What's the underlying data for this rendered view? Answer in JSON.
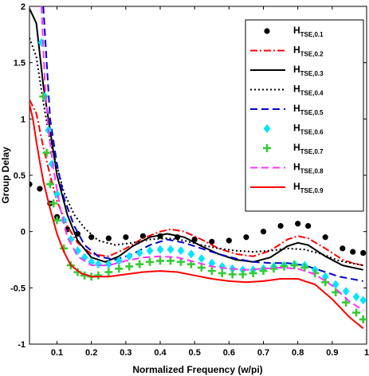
{
  "chart_data": {
    "type": "line",
    "xlabel": "Normalized Frequency (w/pi)",
    "ylabel": "Group Delay",
    "xlim": [
      0.02,
      1.0
    ],
    "ylim": [
      -1,
      2
    ],
    "x_ticks": [
      0.1,
      0.2,
      0.3,
      0.4,
      0.5,
      0.6,
      0.7,
      0.8,
      0.9,
      1
    ],
    "x_tick_labels": [
      "0.1",
      "0.2",
      "0.3",
      "0.4",
      "0.5",
      "0.6",
      "0.7",
      "0.8",
      "0.9",
      "1"
    ],
    "y_ticks": [
      -1,
      -0.5,
      0,
      0.5,
      1,
      1.5,
      2
    ],
    "y_tick_labels": [
      "-1",
      "-0.5",
      "0",
      "0.5",
      "1",
      "1.5",
      "2"
    ],
    "grid": false,
    "legend_position": "top-right",
    "series": [
      {
        "name": "H",
        "sub": "TSE,0.1",
        "color": "#000000",
        "style": "dots",
        "points": [
          [
            0.02,
            0.42
          ],
          [
            0.05,
            0.38
          ],
          [
            0.08,
            0.25
          ],
          [
            0.1,
            0.13
          ],
          [
            0.13,
            0.02
          ],
          [
            0.16,
            -0.02
          ],
          [
            0.2,
            -0.05
          ],
          [
            0.25,
            -0.06
          ],
          [
            0.3,
            -0.05
          ],
          [
            0.35,
            -0.04
          ],
          [
            0.4,
            -0.04
          ],
          [
            0.45,
            -0.05
          ],
          [
            0.5,
            -0.07
          ],
          [
            0.55,
            -0.09
          ],
          [
            0.6,
            -0.08
          ],
          [
            0.65,
            -0.05
          ],
          [
            0.7,
            0.0
          ],
          [
            0.75,
            0.05
          ],
          [
            0.8,
            0.07
          ],
          [
            0.83,
            0.05
          ],
          [
            0.88,
            -0.05
          ],
          [
            0.93,
            -0.15
          ],
          [
            0.96,
            -0.18
          ],
          [
            0.99,
            -0.19
          ]
        ]
      },
      {
        "name": "H",
        "sub": "TSE,0.2",
        "color": "#ff0000",
        "style": "dashdot",
        "points": [
          [
            0.02,
            1.17
          ],
          [
            0.04,
            1.05
          ],
          [
            0.06,
            0.75
          ],
          [
            0.08,
            0.5
          ],
          [
            0.1,
            0.27
          ],
          [
            0.13,
            0.05
          ],
          [
            0.16,
            -0.1
          ],
          [
            0.2,
            -0.2
          ],
          [
            0.25,
            -0.22
          ],
          [
            0.3,
            -0.15
          ],
          [
            0.35,
            -0.06
          ],
          [
            0.4,
            0.0
          ],
          [
            0.43,
            0.02
          ],
          [
            0.47,
            0.0
          ],
          [
            0.52,
            -0.07
          ],
          [
            0.57,
            -0.15
          ],
          [
            0.62,
            -0.2
          ],
          [
            0.67,
            -0.22
          ],
          [
            0.72,
            -0.17
          ],
          [
            0.77,
            -0.07
          ],
          [
            0.8,
            -0.04
          ],
          [
            0.83,
            -0.06
          ],
          [
            0.88,
            -0.15
          ],
          [
            0.93,
            -0.25
          ],
          [
            0.96,
            -0.28
          ],
          [
            0.99,
            -0.3
          ]
        ]
      },
      {
        "name": "H",
        "sub": "TSE,0.3",
        "color": "#000000",
        "style": "solid",
        "points": [
          [
            0.02,
            1.98
          ],
          [
            0.04,
            1.85
          ],
          [
            0.06,
            1.3
          ],
          [
            0.08,
            0.9
          ],
          [
            0.1,
            0.5
          ],
          [
            0.13,
            0.15
          ],
          [
            0.16,
            -0.08
          ],
          [
            0.2,
            -0.23
          ],
          [
            0.24,
            -0.27
          ],
          [
            0.28,
            -0.22
          ],
          [
            0.32,
            -0.13
          ],
          [
            0.37,
            -0.05
          ],
          [
            0.42,
            -0.02
          ],
          [
            0.47,
            -0.05
          ],
          [
            0.52,
            -0.13
          ],
          [
            0.57,
            -0.2
          ],
          [
            0.62,
            -0.25
          ],
          [
            0.67,
            -0.27
          ],
          [
            0.72,
            -0.23
          ],
          [
            0.77,
            -0.13
          ],
          [
            0.8,
            -0.1
          ],
          [
            0.83,
            -0.12
          ],
          [
            0.88,
            -0.22
          ],
          [
            0.93,
            -0.3
          ],
          [
            0.99,
            -0.34
          ]
        ]
      },
      {
        "name": "H",
        "sub": "TSE,0.4",
        "color": "#000000",
        "style": "dotted",
        "points": [
          [
            0.02,
            1.72
          ],
          [
            0.04,
            1.55
          ],
          [
            0.06,
            1.15
          ],
          [
            0.08,
            0.8
          ],
          [
            0.1,
            0.58
          ],
          [
            0.12,
            0.35
          ],
          [
            0.15,
            0.15
          ],
          [
            0.18,
            0.03
          ],
          [
            0.22,
            -0.08
          ],
          [
            0.27,
            -0.12
          ],
          [
            0.32,
            -0.1
          ],
          [
            0.37,
            -0.07
          ],
          [
            0.42,
            -0.06
          ],
          [
            0.47,
            -0.08
          ],
          [
            0.52,
            -0.12
          ],
          [
            0.57,
            -0.15
          ],
          [
            0.62,
            -0.17
          ],
          [
            0.67,
            -0.18
          ],
          [
            0.72,
            -0.17
          ],
          [
            0.77,
            -0.15
          ],
          [
            0.82,
            -0.16
          ],
          [
            0.87,
            -0.2
          ],
          [
            0.92,
            -0.26
          ],
          [
            0.99,
            -0.3
          ]
        ]
      },
      {
        "name": "H",
        "sub": "TSE,0.5",
        "color": "#0000cc",
        "style": "dashed",
        "points": [
          [
            0.06,
            2.0
          ],
          [
            0.07,
            1.5
          ],
          [
            0.08,
            1.0
          ],
          [
            0.1,
            0.6
          ],
          [
            0.12,
            0.3
          ],
          [
            0.15,
            0.05
          ],
          [
            0.18,
            -0.12
          ],
          [
            0.22,
            -0.22
          ],
          [
            0.27,
            -0.25
          ],
          [
            0.32,
            -0.2
          ],
          [
            0.37,
            -0.12
          ],
          [
            0.42,
            -0.07
          ],
          [
            0.47,
            -0.1
          ],
          [
            0.52,
            -0.15
          ],
          [
            0.57,
            -0.2
          ],
          [
            0.62,
            -0.24
          ],
          [
            0.67,
            -0.27
          ],
          [
            0.72,
            -0.28
          ],
          [
            0.77,
            -0.28
          ],
          [
            0.82,
            -0.3
          ],
          [
            0.87,
            -0.35
          ],
          [
            0.92,
            -0.4
          ],
          [
            0.99,
            -0.44
          ]
        ]
      },
      {
        "name": "H",
        "sub": "TSE,0.6",
        "color": "#00e5ff",
        "style": "diamonds",
        "points": [
          [
            0.055,
            1.68
          ],
          [
            0.065,
            1.2
          ],
          [
            0.075,
            0.9
          ],
          [
            0.085,
            0.6
          ],
          [
            0.1,
            0.33
          ],
          [
            0.12,
            0.1
          ],
          [
            0.14,
            -0.07
          ],
          [
            0.16,
            -0.17
          ],
          [
            0.18,
            -0.23
          ],
          [
            0.2,
            -0.27
          ],
          [
            0.22,
            -0.29
          ],
          [
            0.25,
            -0.29
          ],
          [
            0.28,
            -0.26
          ],
          [
            0.31,
            -0.22
          ],
          [
            0.34,
            -0.19
          ],
          [
            0.37,
            -0.17
          ],
          [
            0.4,
            -0.16
          ],
          [
            0.43,
            -0.16
          ],
          [
            0.46,
            -0.17
          ],
          [
            0.49,
            -0.2
          ],
          [
            0.52,
            -0.24
          ],
          [
            0.55,
            -0.28
          ],
          [
            0.58,
            -0.31
          ],
          [
            0.61,
            -0.33
          ],
          [
            0.64,
            -0.34
          ],
          [
            0.67,
            -0.34
          ],
          [
            0.7,
            -0.33
          ],
          [
            0.73,
            -0.31
          ],
          [
            0.76,
            -0.3
          ],
          [
            0.79,
            -0.29
          ],
          [
            0.82,
            -0.3
          ],
          [
            0.85,
            -0.34
          ],
          [
            0.88,
            -0.4
          ],
          [
            0.91,
            -0.47
          ],
          [
            0.94,
            -0.53
          ],
          [
            0.97,
            -0.58
          ],
          [
            0.99,
            -0.61
          ]
        ]
      },
      {
        "name": "H",
        "sub": "TSE,0.7",
        "color": "#33cc33",
        "style": "plus",
        "points": [
          [
            0.06,
            1.2
          ],
          [
            0.07,
            0.7
          ],
          [
            0.08,
            0.42
          ],
          [
            0.09,
            0.25
          ],
          [
            0.1,
            0.1
          ],
          [
            0.12,
            -0.15
          ],
          [
            0.14,
            -0.3
          ],
          [
            0.16,
            -0.36
          ],
          [
            0.18,
            -0.39
          ],
          [
            0.2,
            -0.4
          ],
          [
            0.22,
            -0.39
          ],
          [
            0.25,
            -0.36
          ],
          [
            0.28,
            -0.33
          ],
          [
            0.31,
            -0.31
          ],
          [
            0.34,
            -0.29
          ],
          [
            0.37,
            -0.27
          ],
          [
            0.4,
            -0.26
          ],
          [
            0.43,
            -0.26
          ],
          [
            0.46,
            -0.27
          ],
          [
            0.49,
            -0.29
          ],
          [
            0.52,
            -0.32
          ],
          [
            0.55,
            -0.35
          ],
          [
            0.58,
            -0.37
          ],
          [
            0.61,
            -0.38
          ],
          [
            0.64,
            -0.38
          ],
          [
            0.67,
            -0.37
          ],
          [
            0.7,
            -0.35
          ],
          [
            0.73,
            -0.33
          ],
          [
            0.76,
            -0.31
          ],
          [
            0.79,
            -0.3
          ],
          [
            0.82,
            -0.32
          ],
          [
            0.85,
            -0.37
          ],
          [
            0.88,
            -0.45
          ],
          [
            0.91,
            -0.54
          ],
          [
            0.94,
            -0.63
          ],
          [
            0.97,
            -0.72
          ],
          [
            0.99,
            -0.78
          ]
        ]
      },
      {
        "name": "H",
        "sub": "TSE,0.8",
        "color": "#ff33ff",
        "style": "dashed",
        "points": [
          [
            0.055,
            2.0
          ],
          [
            0.065,
            1.3
          ],
          [
            0.075,
            0.9
          ],
          [
            0.09,
            0.55
          ],
          [
            0.11,
            0.2
          ],
          [
            0.13,
            -0.05
          ],
          [
            0.16,
            -0.22
          ],
          [
            0.2,
            -0.3
          ],
          [
            0.25,
            -0.3
          ],
          [
            0.3,
            -0.26
          ],
          [
            0.35,
            -0.23
          ],
          [
            0.4,
            -0.22
          ],
          [
            0.45,
            -0.23
          ],
          [
            0.5,
            -0.27
          ],
          [
            0.55,
            -0.31
          ],
          [
            0.6,
            -0.33
          ],
          [
            0.65,
            -0.34
          ],
          [
            0.7,
            -0.33
          ],
          [
            0.75,
            -0.32
          ],
          [
            0.8,
            -0.33
          ],
          [
            0.85,
            -0.38
          ],
          [
            0.9,
            -0.48
          ],
          [
            0.95,
            -0.62
          ],
          [
            0.99,
            -0.7
          ]
        ]
      },
      {
        "name": "H",
        "sub": "TSE,0.9",
        "color": "#ff0000",
        "style": "solid",
        "points": [
          [
            0.02,
            1.13
          ],
          [
            0.03,
            1.0
          ],
          [
            0.04,
            0.8
          ],
          [
            0.05,
            0.62
          ],
          [
            0.06,
            0.45
          ],
          [
            0.08,
            0.2
          ],
          [
            0.1,
            -0.02
          ],
          [
            0.12,
            -0.18
          ],
          [
            0.14,
            -0.3
          ],
          [
            0.17,
            -0.37
          ],
          [
            0.2,
            -0.4
          ],
          [
            0.25,
            -0.4
          ],
          [
            0.3,
            -0.38
          ],
          [
            0.35,
            -0.36
          ],
          [
            0.4,
            -0.35
          ],
          [
            0.45,
            -0.36
          ],
          [
            0.5,
            -0.39
          ],
          [
            0.55,
            -0.42
          ],
          [
            0.6,
            -0.44
          ],
          [
            0.65,
            -0.45
          ],
          [
            0.7,
            -0.44
          ],
          [
            0.75,
            -0.42
          ],
          [
            0.8,
            -0.42
          ],
          [
            0.85,
            -0.47
          ],
          [
            0.9,
            -0.6
          ],
          [
            0.95,
            -0.76
          ],
          [
            0.99,
            -0.86
          ]
        ]
      }
    ]
  }
}
